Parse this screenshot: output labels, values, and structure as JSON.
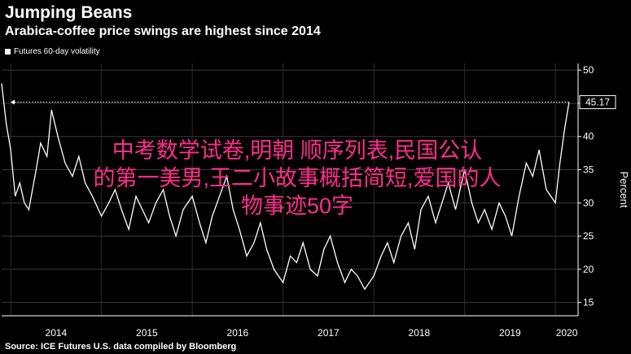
{
  "header": {
    "title": "Jumping Beans",
    "subtitle": "Arabica-coffee price swings are highest since 2014"
  },
  "legend": {
    "label": "Futures 60-day volatility"
  },
  "source": "Source: ICE Futures U.S. data compiled by Bloomberg",
  "watermark": {
    "line1": "中考数学试卷,明朝 顺序列表,民国公认",
    "line2": "的第一美男,王二小故事概括简短,爱国的人",
    "line3": "物事迹50字"
  },
  "colors": {
    "background": "#000000",
    "line": "#ffffff",
    "watermark": "#ff2d8a"
  },
  "chart_data": {
    "type": "line",
    "ylabel": "Percent",
    "ylim": [
      13,
      51
    ],
    "yticks": [
      15,
      20,
      25,
      30,
      35,
      40,
      45,
      50
    ],
    "xlim": [
      2013.9,
      2020.25
    ],
    "xticks": [
      {
        "label": "2014",
        "value": 2014.0
      },
      {
        "label": "2015",
        "value": 2015.0
      },
      {
        "label": "2016",
        "value": 2016.0
      },
      {
        "label": "2017",
        "value": 2017.0
      },
      {
        "label": "2018",
        "value": 2018.0
      },
      {
        "label": "2019",
        "value": 2019.0
      },
      {
        "label": "2020",
        "value": 2020.0
      }
    ],
    "last_value_label": "45.17",
    "last_value": 45.17,
    "series": [
      {
        "name": "Futures 60-day volatility",
        "x": [
          2013.9,
          2013.95,
          2014.0,
          2014.05,
          2014.1,
          2014.15,
          2014.2,
          2014.28,
          2014.33,
          2014.4,
          2014.45,
          2014.52,
          2014.6,
          2014.68,
          2014.75,
          2014.82,
          2014.9,
          2015.0,
          2015.08,
          2015.15,
          2015.22,
          2015.3,
          2015.38,
          2015.45,
          2015.52,
          2015.6,
          2015.68,
          2015.75,
          2015.82,
          2015.9,
          2016.0,
          2016.08,
          2016.15,
          2016.22,
          2016.3,
          2016.38,
          2016.45,
          2016.52,
          2016.6,
          2016.68,
          2016.75,
          2016.82,
          2016.9,
          2017.0,
          2017.08,
          2017.15,
          2017.22,
          2017.3,
          2017.38,
          2017.45,
          2017.52,
          2017.6,
          2017.68,
          2017.75,
          2017.82,
          2017.9,
          2018.0,
          2018.08,
          2018.15,
          2018.22,
          2018.3,
          2018.38,
          2018.45,
          2018.52,
          2018.6,
          2018.68,
          2018.75,
          2018.82,
          2018.9,
          2019.0,
          2019.08,
          2019.15,
          2019.22,
          2019.3,
          2019.38,
          2019.45,
          2019.52,
          2019.6,
          2019.68,
          2019.75,
          2019.82,
          2019.9,
          2020.0,
          2020.05,
          2020.1,
          2020.15
        ],
        "values": [
          48,
          42,
          38,
          31,
          33,
          30,
          29,
          35,
          39,
          37,
          44,
          40,
          36,
          34,
          37,
          33,
          31,
          28,
          30,
          32,
          29,
          26,
          31,
          29,
          27,
          30,
          32,
          28,
          25,
          29,
          31,
          27,
          24,
          28,
          31,
          34,
          29,
          26,
          22,
          24,
          27,
          23,
          20,
          18,
          22,
          21,
          24,
          20,
          19,
          23,
          25,
          21,
          18,
          20,
          19,
          17,
          19,
          22,
          24,
          21,
          25,
          27,
          23,
          29,
          31,
          27,
          30,
          33,
          29,
          35,
          30,
          27,
          29,
          26,
          30,
          28,
          25,
          31,
          36,
          34,
          38,
          32,
          30,
          36,
          41,
          45.17
        ]
      }
    ]
  }
}
